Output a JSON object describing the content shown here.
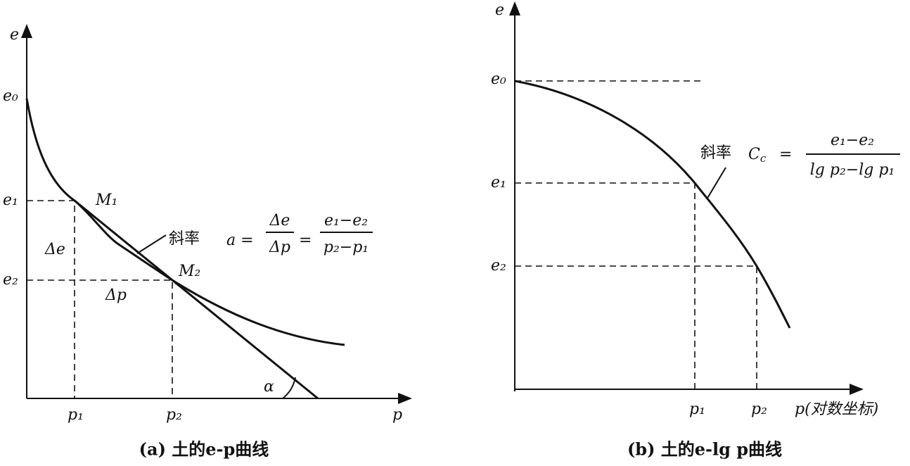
{
  "panel_a": {
    "y_axis": "e",
    "x_axis": "p",
    "e0": "e₀",
    "e1": "e₁",
    "e2": "e₂",
    "M1": "M₁",
    "M2": "M₂",
    "delta_e": "Δe",
    "delta_p": "Δp",
    "p1": "p₁",
    "p2": "p₂",
    "alpha": "α",
    "formula": {
      "label": "斜率",
      "lhs": "a =",
      "frac1_num": "Δe",
      "frac1_den": "Δp",
      "eq": "=",
      "frac2_num": "e₁−e₂",
      "frac2_den": "p₂−p₁"
    },
    "caption": "(a) 土的e-p曲线"
  },
  "panel_b": {
    "y_axis": "e",
    "x_axis": "p(对数坐标)",
    "e0": "e₀",
    "e1": "e₁",
    "e2": "e₂",
    "p1": "p₁",
    "p2": "p₂",
    "formula": {
      "label": "斜率",
      "symbol": "C",
      "symbol_sub": "c",
      "eq": "=",
      "num": "e₁−e₂",
      "den": "lg p₂−lg p₁"
    },
    "caption": "(b) 土的e-lg p曲线"
  }
}
